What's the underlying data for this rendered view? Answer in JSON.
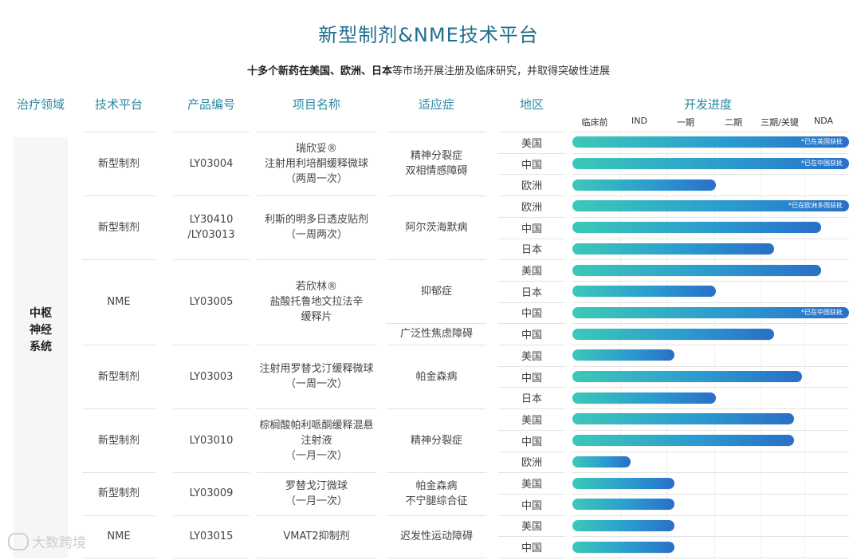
{
  "title": "新型制剂&NME技术平台",
  "subtitle_bold": "十多个新药在美国、欧洲、日本",
  "subtitle_rest": "等市场开展注册及临床研究，并取得突破性进展",
  "headers": {
    "area": "治疗领域",
    "platform": "技术平台",
    "code": "产品编号",
    "name": "项目名称",
    "indication": "适应症",
    "region": "地区",
    "progress": "开发进度"
  },
  "stages": [
    "临床前",
    "IND",
    "一期",
    "二期",
    "三期/关键",
    "NDA"
  ],
  "therapy_area": "中枢\n神经\n系统",
  "products": [
    {
      "platform": "新型制剂",
      "code": "LY03004",
      "name": "瑞欣妥®\n注射用利培酮缓释微球\n（两周一次）",
      "indication": "精神分裂症\n双相情感障碍"
    },
    {
      "platform": "新型制剂",
      "code": "LY30410\n/LY03013",
      "name": "利斯的明多日透皮贴剂\n（一周两次）",
      "indication": "阿尔茨海默病"
    },
    {
      "platform": "NME",
      "code": "LY03005",
      "name": "若欣林®\n盐酸托鲁地文拉法辛\n缓释片",
      "indication": "抑郁症",
      "indication2": "广泛性焦虑障碍"
    },
    {
      "platform": "新型制剂",
      "code": "LY03003",
      "name": "注射用罗替戈汀缓释微球\n（一周一次）",
      "indication": "帕金森病"
    },
    {
      "platform": "新型制剂",
      "code": "LY03010",
      "name": "棕榈酸帕利哌酮缓释混悬\n注射液\n（一月一次）",
      "indication": "精神分裂症"
    },
    {
      "platform": "新型制剂",
      "code": "LY03009",
      "name": "罗替戈汀微球\n（一月一次）",
      "indication": "帕金森病\n不宁腿综合征"
    },
    {
      "platform": "NME",
      "code": "LY03015",
      "name": "VMAT2抑制剂",
      "indication": "迟发性运动障碍"
    }
  ],
  "rows": [
    {
      "region": "美国",
      "progress": 1.0,
      "note": "*已在美国获批"
    },
    {
      "region": "中国",
      "progress": 1.0,
      "note": "*已在中国获批"
    },
    {
      "region": "欧洲",
      "progress": 0.52,
      "note": ""
    },
    {
      "region": "欧洲",
      "progress": 1.0,
      "note": "*已在欧洲多国获批"
    },
    {
      "region": "中国",
      "progress": 0.9,
      "note": ""
    },
    {
      "region": "日本",
      "progress": 0.73,
      "note": ""
    },
    {
      "region": "美国",
      "progress": 0.9,
      "note": ""
    },
    {
      "region": "日本",
      "progress": 0.52,
      "note": ""
    },
    {
      "region": "中国",
      "progress": 1.0,
      "note": "*已在中国获批"
    },
    {
      "region": "中国",
      "progress": 0.73,
      "note": ""
    },
    {
      "region": "美国",
      "progress": 0.37,
      "note": ""
    },
    {
      "region": "中国",
      "progress": 0.83,
      "note": ""
    },
    {
      "region": "日本",
      "progress": 0.52,
      "note": ""
    },
    {
      "region": "美国",
      "progress": 0.8,
      "note": ""
    },
    {
      "region": "中国",
      "progress": 0.8,
      "note": ""
    },
    {
      "region": "欧洲",
      "progress": 0.21,
      "note": ""
    },
    {
      "region": "美国",
      "progress": 0.37,
      "note": ""
    },
    {
      "region": "中国",
      "progress": 0.37,
      "note": ""
    },
    {
      "region": "美国",
      "progress": 0.37,
      "note": ""
    },
    {
      "region": "中国",
      "progress": 0.37,
      "note": ""
    }
  ],
  "watermark": "大数跨境"
}
